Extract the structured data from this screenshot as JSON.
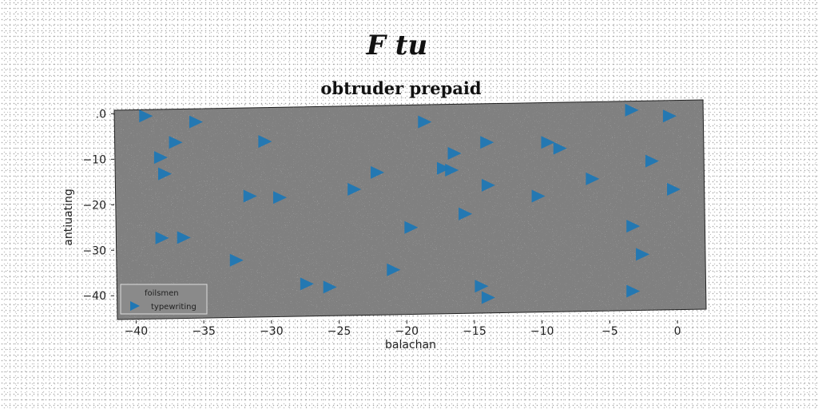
{
  "figure": {
    "suptitle": "F tu"
  },
  "chart_data": {
    "type": "scatter",
    "title": "obtruder prepaid",
    "xlabel": "balachan",
    "ylabel": "antiuating",
    "xlim": [
      -41.5,
      2
    ],
    "ylim": [
      -44,
      2
    ],
    "xticks": [
      -40,
      -35,
      -30,
      -25,
      -20,
      -15,
      -10,
      -5,
      0
    ],
    "yticks": [
      0,
      -10,
      -20,
      -30,
      -40
    ],
    "xtick_labels": [
      "−40",
      "−35",
      "−30",
      "−25",
      "−20",
      "−15",
      "−10",
      "−5",
      "0"
    ],
    "ytick_labels": [
      ".0",
      "−10",
      "−20",
      "−30",
      "−40"
    ],
    "grid": false,
    "legend": {
      "title": "foilsmen",
      "entries": [
        "typewriting"
      ],
      "position": "lower-left"
    },
    "plot_background": "#808080",
    "marker": "triangle-right",
    "series": [
      {
        "name": "typewriting",
        "color": "#1f77b4",
        "points": [
          [
            -39.3,
            -0.5
          ],
          [
            -35.6,
            -1.8
          ],
          [
            -37.1,
            -6.3
          ],
          [
            -38.2,
            -9.6
          ],
          [
            -37.9,
            -13.2
          ],
          [
            -30.5,
            -6.1
          ],
          [
            -31.6,
            -18.1
          ],
          [
            -29.4,
            -18.4
          ],
          [
            -38.1,
            -27.3
          ],
          [
            -36.5,
            -27.2
          ],
          [
            -32.6,
            -32.2
          ],
          [
            -27.4,
            -37.4
          ],
          [
            -25.7,
            -38.1
          ],
          [
            -23.9,
            -16.6
          ],
          [
            -22.2,
            -12.9
          ],
          [
            -18.7,
            -1.8
          ],
          [
            -16.5,
            -8.7
          ],
          [
            -17.3,
            -12.0
          ],
          [
            -16.7,
            -12.4
          ],
          [
            -14.1,
            -6.3
          ],
          [
            -14.0,
            -15.7
          ],
          [
            -15.7,
            -22.0
          ],
          [
            -19.7,
            -25.0
          ],
          [
            -21.0,
            -34.3
          ],
          [
            -14.5,
            -37.9
          ],
          [
            -14.0,
            -40.4
          ],
          [
            -9.6,
            -6.3
          ],
          [
            -8.7,
            -7.6
          ],
          [
            -10.3,
            -18.1
          ],
          [
            -6.3,
            -14.3
          ],
          [
            -3.4,
            0.8
          ],
          [
            -0.6,
            -0.5
          ],
          [
            -1.9,
            -10.4
          ],
          [
            -0.3,
            -16.6
          ],
          [
            -3.3,
            -24.7
          ],
          [
            -2.6,
            -30.9
          ],
          [
            -3.3,
            -39.0
          ]
        ]
      }
    ]
  }
}
